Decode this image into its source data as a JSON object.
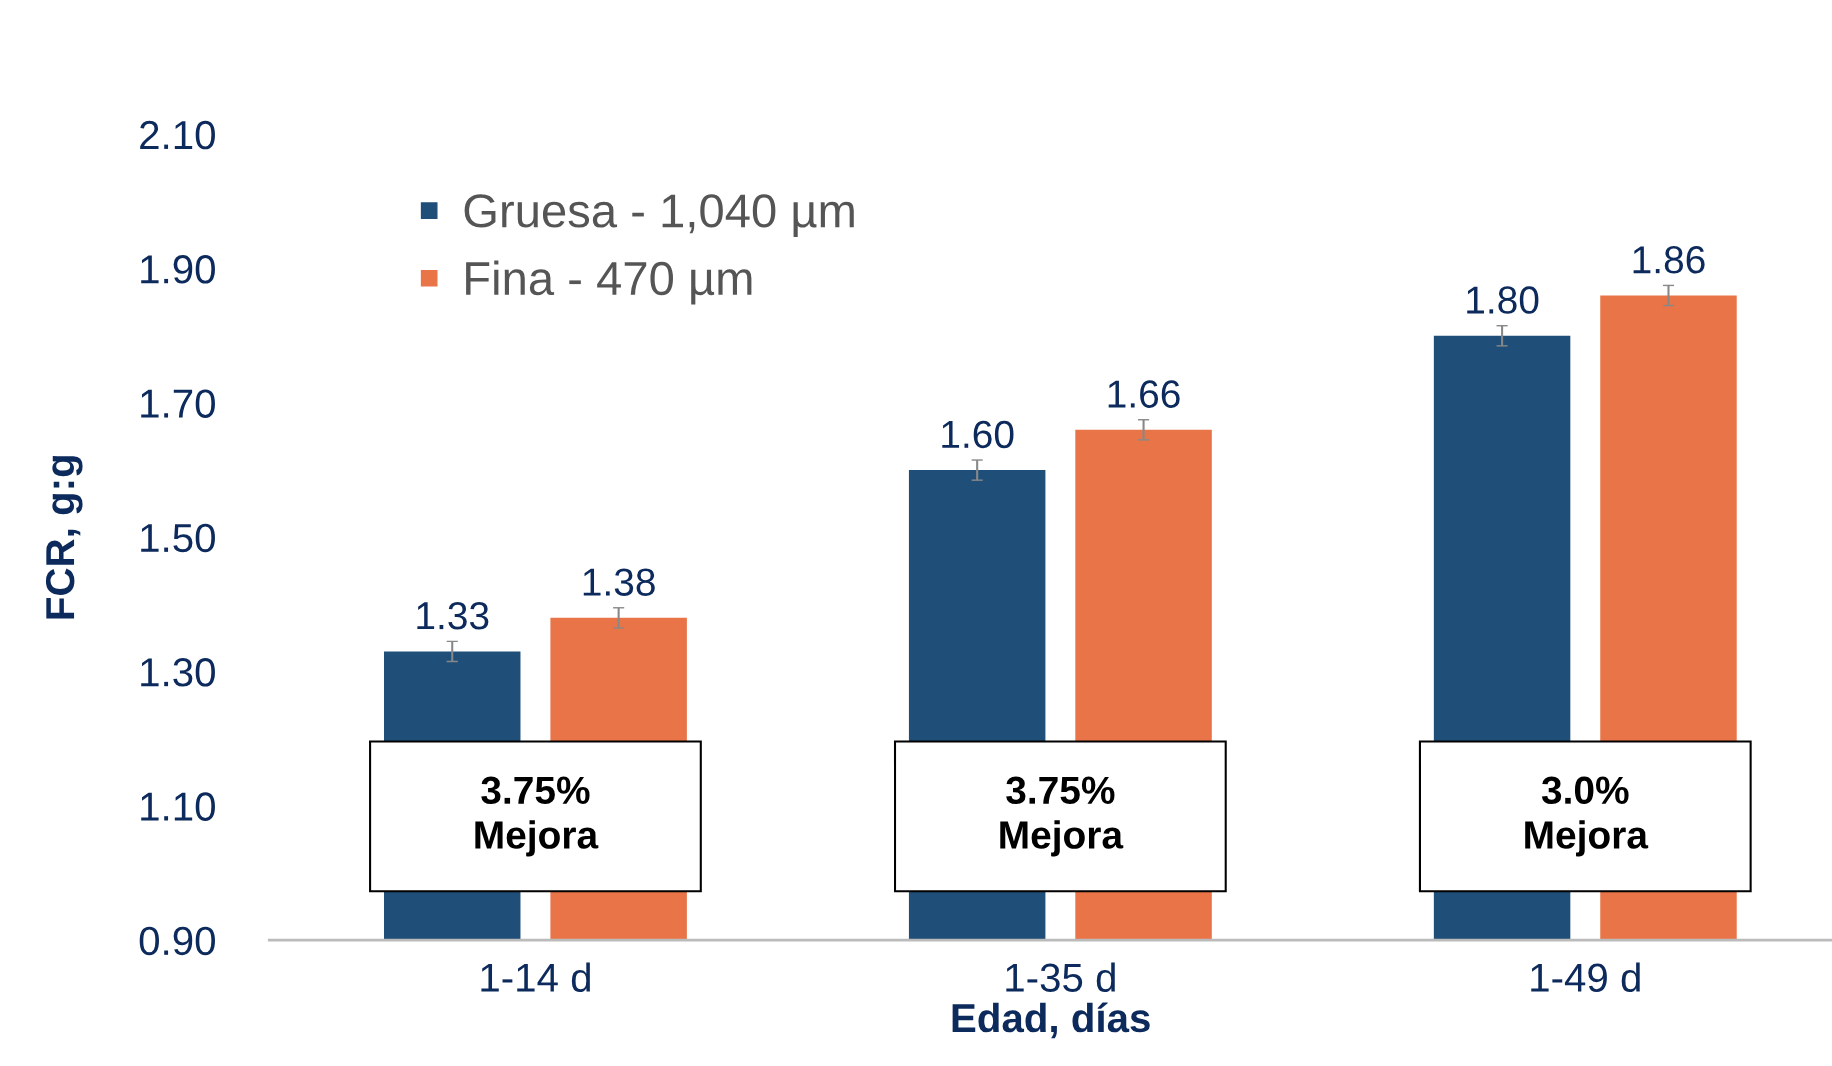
{
  "chart_data": {
    "type": "bar",
    "xlabel": "Edad, días",
    "ylabel": "FCR, g:g",
    "categories": [
      "1-14 d",
      "1-35 d",
      "1-49 d"
    ],
    "series": [
      {
        "name": "Gruesa - 1,040 µm",
        "color": "#1f4e79",
        "values": [
          1.33,
          1.6,
          1.8
        ],
        "errors": [
          0.015,
          0.015,
          0.015
        ],
        "value_labels": [
          "1.33",
          "1.60",
          "1.80"
        ]
      },
      {
        "name": "Fina - 470 µm",
        "color": "#e97447",
        "values": [
          1.38,
          1.66,
          1.86
        ],
        "errors": [
          0.015,
          0.015,
          0.015
        ],
        "value_labels": [
          "1.38",
          "1.66",
          "1.86"
        ]
      }
    ],
    "ylim": [
      0.9,
      2.1
    ],
    "yticks": [
      {
        "value": 0.9,
        "label": "0.90"
      },
      {
        "value": 1.1,
        "label": "1.10"
      },
      {
        "value": 1.3,
        "label": "1.30"
      },
      {
        "value": 1.5,
        "label": "1.50"
      },
      {
        "value": 1.7,
        "label": "1.70"
      },
      {
        "value": 1.9,
        "label": "1.90"
      },
      {
        "value": 2.1,
        "label": "2.10"
      }
    ],
    "legend": "top left",
    "annotations": [
      "3.75%\nMejora",
      "3.75%\nMejora",
      "3.0%\nMejora"
    ]
  }
}
